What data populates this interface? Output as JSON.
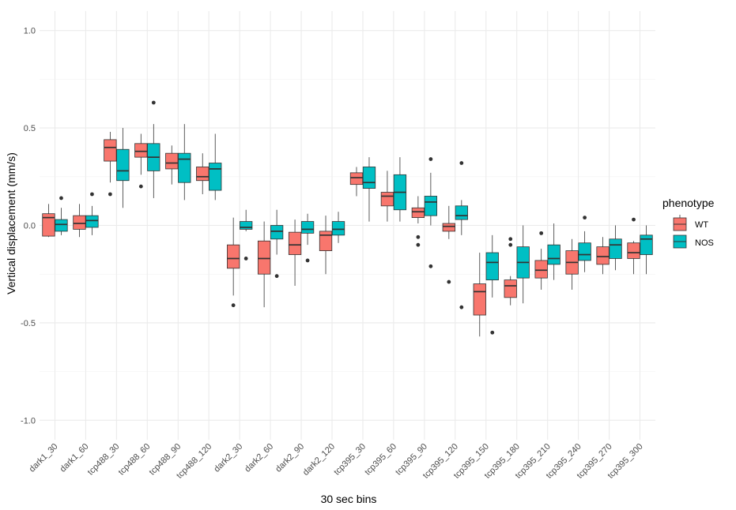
{
  "chart_data": {
    "type": "boxplot",
    "title": "",
    "xlabel": "30 sec bins",
    "ylabel": "Vertical displacement (mm/s)",
    "ylim": [
      -1.1,
      1.1
    ],
    "yticks": [
      -1.0,
      -0.5,
      0.0,
      0.5,
      1.0
    ],
    "ytick_labels": [
      "-1.0",
      "-0.5",
      "0.0",
      "0.5",
      "1.0"
    ],
    "grid": true,
    "legend": {
      "title": "phenotype",
      "position": "right",
      "entries": [
        "WT",
        "NOS"
      ]
    },
    "colors": {
      "WT": "#F8766D",
      "NOS": "#00BFC4"
    },
    "categories": [
      "dark1_30",
      "dark1_60",
      "tcp488_30",
      "tcp488_60",
      "tcp488_90",
      "tcp488_120",
      "dark2_30",
      "dark2_60",
      "dark2_90",
      "dark2_120",
      "tcp395_30",
      "tcp395_60",
      "tcp395_90",
      "tcp395_120",
      "tcp395_150",
      "tcp395_180",
      "tcp395_210",
      "tcp395_240",
      "tcp395_270",
      "tcp395_300"
    ],
    "series": [
      {
        "name": "WT",
        "boxes": [
          {
            "whisker_low": -0.06,
            "q1": -0.055,
            "median": 0.04,
            "q3": 0.06,
            "whisker_high": 0.11,
            "outliers": []
          },
          {
            "whisker_low": -0.06,
            "q1": -0.02,
            "median": 0.01,
            "q3": 0.05,
            "whisker_high": 0.11,
            "outliers": []
          },
          {
            "whisker_low": 0.22,
            "q1": 0.33,
            "median": 0.4,
            "q3": 0.44,
            "whisker_high": 0.48,
            "outliers": [
              0.16
            ]
          },
          {
            "whisker_low": 0.26,
            "q1": 0.35,
            "median": 0.38,
            "q3": 0.42,
            "whisker_high": 0.47,
            "outliers": [
              0.2
            ]
          },
          {
            "whisker_low": 0.21,
            "q1": 0.29,
            "median": 0.32,
            "q3": 0.37,
            "whisker_high": 0.41,
            "outliers": []
          },
          {
            "whisker_low": 0.16,
            "q1": 0.23,
            "median": 0.25,
            "q3": 0.3,
            "whisker_high": 0.37,
            "outliers": []
          },
          {
            "whisker_low": -0.36,
            "q1": -0.22,
            "median": -0.17,
            "q3": -0.1,
            "whisker_high": 0.04,
            "outliers": [
              -0.41
            ]
          },
          {
            "whisker_low": -0.42,
            "q1": -0.25,
            "median": -0.17,
            "q3": -0.08,
            "whisker_high": 0.02,
            "outliers": []
          },
          {
            "whisker_low": -0.31,
            "q1": -0.15,
            "median": -0.1,
            "q3": -0.035,
            "whisker_high": 0.03,
            "outliers": []
          },
          {
            "whisker_low": -0.25,
            "q1": -0.13,
            "median": -0.05,
            "q3": -0.03,
            "whisker_high": 0.05,
            "outliers": []
          },
          {
            "whisker_low": 0.15,
            "q1": 0.21,
            "median": 0.245,
            "q3": 0.27,
            "whisker_high": 0.3,
            "outliers": []
          },
          {
            "whisker_low": 0.02,
            "q1": 0.1,
            "median": 0.15,
            "q3": 0.17,
            "whisker_high": 0.28,
            "outliers": []
          },
          {
            "whisker_low": 0.01,
            "q1": 0.04,
            "median": 0.07,
            "q3": 0.09,
            "whisker_high": 0.15,
            "outliers": [
              -0.06,
              -0.1
            ]
          },
          {
            "whisker_low": -0.07,
            "q1": -0.03,
            "median": -0.005,
            "q3": 0.01,
            "whisker_high": 0.1,
            "outliers": [
              -0.29
            ]
          },
          {
            "whisker_low": -0.57,
            "q1": -0.46,
            "median": -0.34,
            "q3": -0.3,
            "whisker_high": -0.14,
            "outliers": []
          },
          {
            "whisker_low": -0.41,
            "q1": -0.37,
            "median": -0.31,
            "q3": -0.28,
            "whisker_high": -0.26,
            "outliers": [
              -0.07,
              -0.1
            ]
          },
          {
            "whisker_low": -0.33,
            "q1": -0.27,
            "median": -0.23,
            "q3": -0.18,
            "whisker_high": -0.12,
            "outliers": [
              -0.04
            ]
          },
          {
            "whisker_low": -0.33,
            "q1": -0.25,
            "median": -0.19,
            "q3": -0.13,
            "whisker_high": -0.07,
            "outliers": []
          },
          {
            "whisker_low": -0.25,
            "q1": -0.2,
            "median": -0.16,
            "q3": -0.11,
            "whisker_high": -0.06,
            "outliers": []
          },
          {
            "whisker_low": -0.25,
            "q1": -0.17,
            "median": -0.14,
            "q3": -0.09,
            "whisker_high": -0.08,
            "outliers": [
              0.03
            ]
          }
        ]
      },
      {
        "name": "NOS",
        "boxes": [
          {
            "whisker_low": -0.05,
            "q1": -0.03,
            "median": 0.005,
            "q3": 0.03,
            "whisker_high": 0.09,
            "outliers": [
              0.14
            ]
          },
          {
            "whisker_low": -0.05,
            "q1": -0.01,
            "median": 0.025,
            "q3": 0.05,
            "whisker_high": 0.1,
            "outliers": [
              0.16
            ]
          },
          {
            "whisker_low": 0.09,
            "q1": 0.23,
            "median": 0.28,
            "q3": 0.39,
            "whisker_high": 0.5,
            "outliers": []
          },
          {
            "whisker_low": 0.14,
            "q1": 0.28,
            "median": 0.35,
            "q3": 0.42,
            "whisker_high": 0.52,
            "outliers": [
              0.63
            ]
          },
          {
            "whisker_low": 0.13,
            "q1": 0.22,
            "median": 0.34,
            "q3": 0.37,
            "whisker_high": 0.52,
            "outliers": []
          },
          {
            "whisker_low": 0.13,
            "q1": 0.18,
            "median": 0.29,
            "q3": 0.32,
            "whisker_high": 0.47,
            "outliers": []
          },
          {
            "whisker_low": -0.03,
            "q1": -0.02,
            "median": -0.01,
            "q3": 0.02,
            "whisker_high": 0.08,
            "outliers": [
              -0.17
            ]
          },
          {
            "whisker_low": -0.15,
            "q1": -0.07,
            "median": -0.03,
            "q3": 0.0,
            "whisker_high": 0.08,
            "outliers": [
              -0.26
            ]
          },
          {
            "whisker_low": -0.1,
            "q1": -0.04,
            "median": -0.02,
            "q3": 0.02,
            "whisker_high": 0.06,
            "outliers": [
              -0.18
            ]
          },
          {
            "whisker_low": -0.09,
            "q1": -0.05,
            "median": -0.02,
            "q3": 0.02,
            "whisker_high": 0.07,
            "outliers": []
          },
          {
            "whisker_low": 0.02,
            "q1": 0.19,
            "median": 0.22,
            "q3": 0.3,
            "whisker_high": 0.35,
            "outliers": []
          },
          {
            "whisker_low": 0.02,
            "q1": 0.08,
            "median": 0.17,
            "q3": 0.26,
            "whisker_high": 0.35,
            "outliers": []
          },
          {
            "whisker_low": 0.0,
            "q1": 0.05,
            "median": 0.12,
            "q3": 0.15,
            "whisker_high": 0.27,
            "outliers": [
              0.34,
              -0.21
            ]
          },
          {
            "whisker_low": -0.05,
            "q1": 0.03,
            "median": 0.05,
            "q3": 0.1,
            "whisker_high": 0.13,
            "outliers": [
              0.32,
              -0.42
            ]
          },
          {
            "whisker_low": -0.37,
            "q1": -0.28,
            "median": -0.19,
            "q3": -0.14,
            "whisker_high": -0.05,
            "outliers": [
              -0.55
            ]
          },
          {
            "whisker_low": -0.4,
            "q1": -0.27,
            "median": -0.19,
            "q3": -0.11,
            "whisker_high": 0.0,
            "outliers": []
          },
          {
            "whisker_low": -0.28,
            "q1": -0.2,
            "median": -0.17,
            "q3": -0.1,
            "whisker_high": 0.01,
            "outliers": []
          },
          {
            "whisker_low": -0.24,
            "q1": -0.18,
            "median": -0.15,
            "q3": -0.09,
            "whisker_high": -0.03,
            "outliers": [
              0.04
            ]
          },
          {
            "whisker_low": -0.23,
            "q1": -0.17,
            "median": -0.1,
            "q3": -0.07,
            "whisker_high": 0.0,
            "outliers": []
          },
          {
            "whisker_low": -0.25,
            "q1": -0.15,
            "median": -0.07,
            "q3": -0.05,
            "whisker_high": 0.0,
            "outliers": []
          }
        ]
      }
    ]
  }
}
